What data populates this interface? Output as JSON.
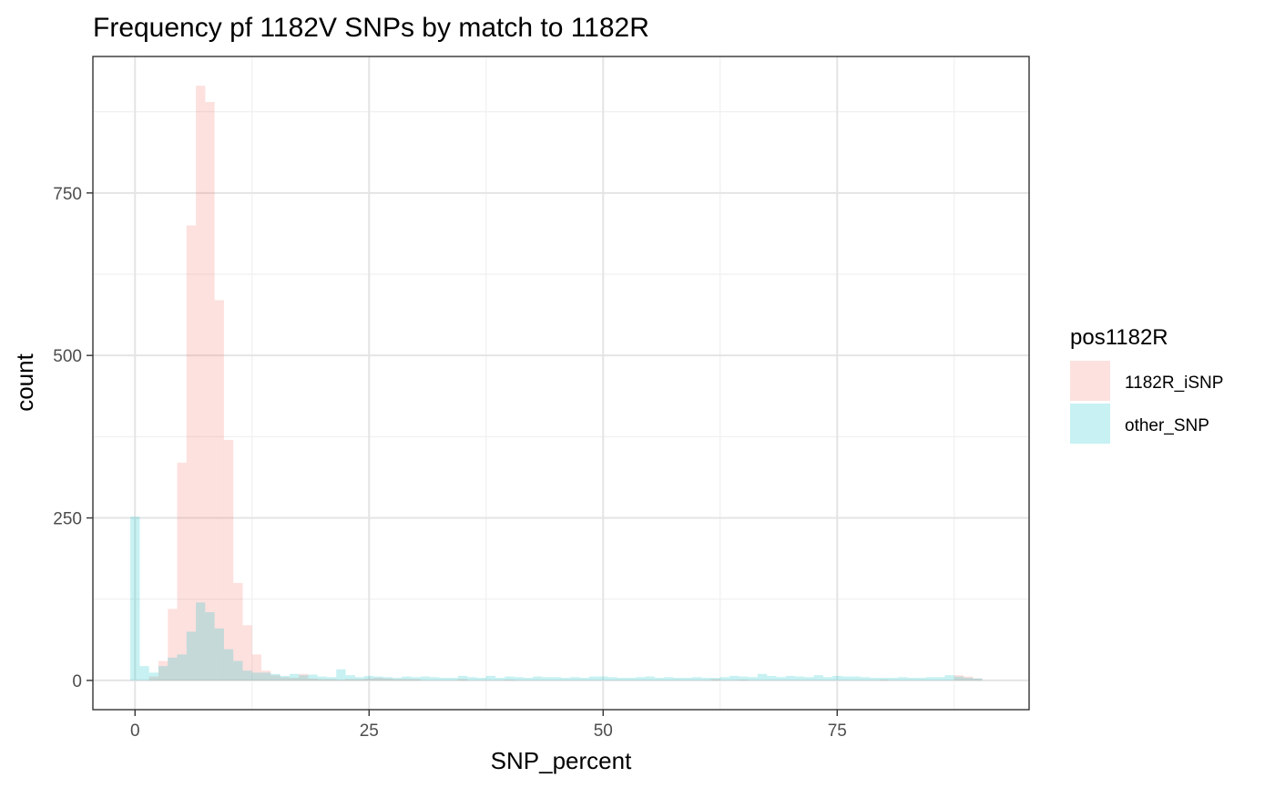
{
  "chart_data": {
    "type": "bar",
    "subtype": "overlapping-histogram",
    "title": "Frequency pf 1182V SNPs by match to 1182R",
    "xlabel": "SNP_percent",
    "ylabel": "count",
    "xlim": [
      -4.5,
      95.5
    ],
    "ylim": [
      -45,
      960
    ],
    "x_ticks": [
      0,
      25,
      50,
      75
    ],
    "y_ticks": [
      0,
      250,
      500,
      750
    ],
    "grid": true,
    "theme": "bw",
    "bin_width": 1,
    "bar_opacity": 0.22,
    "legend": {
      "title": "pos1182R",
      "position": "right",
      "entries": [
        "1182R_iSNP",
        "other_SNP"
      ]
    },
    "series": [
      {
        "name": "1182R_iSNP",
        "color": "#F8766D",
        "bins": [
          [
            2,
            6
          ],
          [
            3,
            30
          ],
          [
            4,
            110
          ],
          [
            5,
            335
          ],
          [
            6,
            700
          ],
          [
            7,
            915
          ],
          [
            8,
            890
          ],
          [
            9,
            585
          ],
          [
            10,
            370
          ],
          [
            11,
            150
          ],
          [
            12,
            85
          ],
          [
            13,
            40
          ],
          [
            14,
            15
          ],
          [
            15,
            8
          ],
          [
            16,
            5
          ],
          [
            17,
            4
          ],
          [
            18,
            10
          ],
          [
            19,
            3
          ],
          [
            20,
            2
          ],
          [
            21,
            2
          ],
          [
            22,
            1
          ],
          [
            23,
            2
          ],
          [
            24,
            2
          ],
          [
            25,
            3
          ],
          [
            26,
            4
          ],
          [
            27,
            3
          ],
          [
            28,
            2
          ],
          [
            29,
            2
          ],
          [
            30,
            2
          ],
          [
            35,
            2
          ],
          [
            40,
            1
          ],
          [
            62,
            2
          ],
          [
            65,
            1
          ],
          [
            80,
            1
          ],
          [
            88,
            8
          ],
          [
            89,
            6
          ],
          [
            90,
            3
          ]
        ]
      },
      {
        "name": "other_SNP",
        "color": "#00BFC4",
        "bins": [
          [
            0,
            252
          ],
          [
            1,
            22
          ],
          [
            2,
            12
          ],
          [
            3,
            22
          ],
          [
            4,
            35
          ],
          [
            5,
            40
          ],
          [
            6,
            75
          ],
          [
            7,
            120
          ],
          [
            8,
            105
          ],
          [
            9,
            80
          ],
          [
            10,
            48
          ],
          [
            11,
            30
          ],
          [
            12,
            15
          ],
          [
            13,
            12
          ],
          [
            14,
            12
          ],
          [
            15,
            10
          ],
          [
            16,
            7
          ],
          [
            17,
            10
          ],
          [
            18,
            8
          ],
          [
            19,
            9
          ],
          [
            20,
            6
          ],
          [
            21,
            5
          ],
          [
            22,
            17
          ],
          [
            23,
            8
          ],
          [
            24,
            5
          ],
          [
            25,
            7
          ],
          [
            26,
            6
          ],
          [
            27,
            5
          ],
          [
            28,
            4
          ],
          [
            29,
            6
          ],
          [
            30,
            5
          ],
          [
            31,
            6
          ],
          [
            32,
            5
          ],
          [
            33,
            4
          ],
          [
            34,
            4
          ],
          [
            35,
            7
          ],
          [
            36,
            5
          ],
          [
            37,
            4
          ],
          [
            38,
            7
          ],
          [
            39,
            4
          ],
          [
            40,
            6
          ],
          [
            41,
            5
          ],
          [
            42,
            4
          ],
          [
            43,
            6
          ],
          [
            44,
            5
          ],
          [
            45,
            5
          ],
          [
            46,
            4
          ],
          [
            47,
            5
          ],
          [
            48,
            4
          ],
          [
            49,
            6
          ],
          [
            50,
            6
          ],
          [
            51,
            5
          ],
          [
            52,
            4
          ],
          [
            53,
            4
          ],
          [
            54,
            5
          ],
          [
            55,
            6
          ],
          [
            56,
            4
          ],
          [
            57,
            5
          ],
          [
            58,
            4
          ],
          [
            59,
            4
          ],
          [
            60,
            5
          ],
          [
            61,
            4
          ],
          [
            62,
            4
          ],
          [
            63,
            5
          ],
          [
            64,
            7
          ],
          [
            65,
            6
          ],
          [
            66,
            5
          ],
          [
            67,
            10
          ],
          [
            68,
            7
          ],
          [
            69,
            5
          ],
          [
            70,
            7
          ],
          [
            71,
            6
          ],
          [
            72,
            5
          ],
          [
            73,
            8
          ],
          [
            74,
            5
          ],
          [
            75,
            7
          ],
          [
            76,
            6
          ],
          [
            77,
            6
          ],
          [
            78,
            5
          ],
          [
            79,
            4
          ],
          [
            80,
            4
          ],
          [
            81,
            4
          ],
          [
            82,
            5
          ],
          [
            83,
            4
          ],
          [
            84,
            4
          ],
          [
            85,
            5
          ],
          [
            86,
            5
          ],
          [
            87,
            8
          ],
          [
            88,
            6
          ],
          [
            89,
            4
          ],
          [
            90,
            3
          ]
        ]
      }
    ]
  }
}
